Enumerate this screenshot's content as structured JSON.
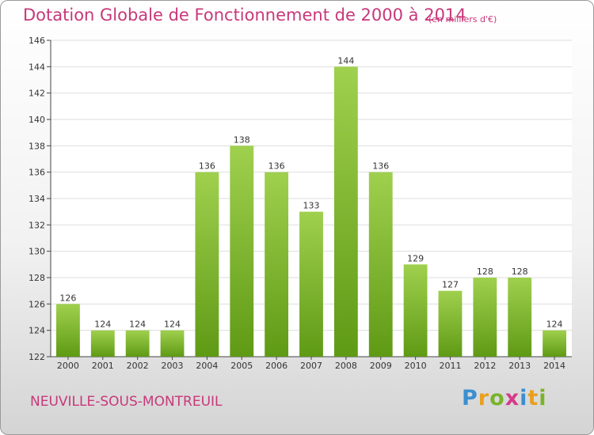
{
  "chart_data": {
    "type": "bar",
    "title": "Dotation Globale de Fonctionnement de 2000 à 2014",
    "subtitle": "(en milliers d'€)",
    "categories": [
      "2000",
      "2001",
      "2002",
      "2003",
      "2004",
      "2005",
      "2006",
      "2007",
      "2008",
      "2009",
      "2010",
      "2011",
      "2012",
      "2013",
      "2014"
    ],
    "values": [
      126,
      124,
      124,
      124,
      136,
      138,
      136,
      133,
      144,
      136,
      129,
      127,
      128,
      128,
      124
    ],
    "ylim": [
      122,
      146
    ],
    "yticks": [
      122,
      124,
      126,
      128,
      130,
      132,
      134,
      136,
      138,
      140,
      142,
      144,
      146
    ],
    "grid": true,
    "bar_color_top": "#9fd04e",
    "bar_color_bottom": "#5f9a15",
    "grid_color": "#dddddd"
  },
  "commune": "NEUVILLE-SOUS-MONTREUIL",
  "logo": {
    "letters": [
      "P",
      "r",
      "o",
      "x",
      "i",
      "t",
      "i"
    ],
    "text": "Proxiti"
  }
}
